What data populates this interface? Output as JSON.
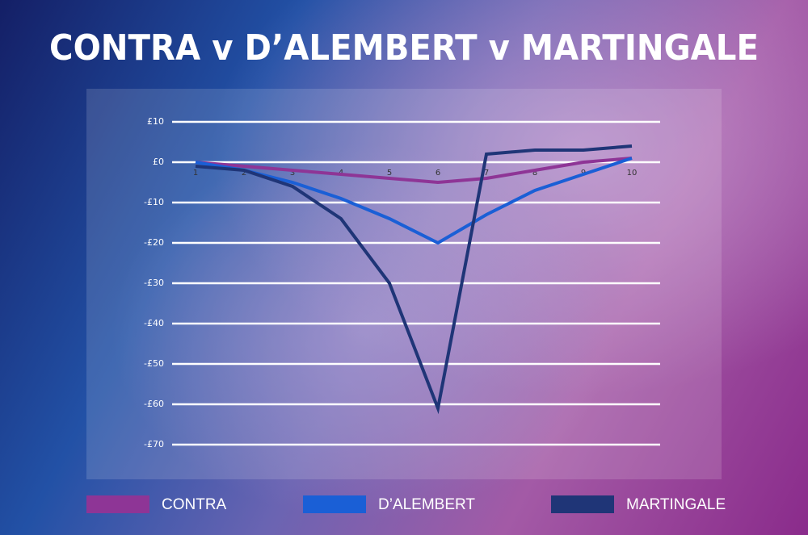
{
  "chart_data": {
    "type": "line",
    "title": "CONTRA v D’ALEMBERT v MARTINGALE",
    "categories": [
      "1",
      "2",
      "3",
      "4",
      "5",
      "6",
      "7",
      "8",
      "9",
      "10"
    ],
    "series": [
      {
        "name": "CONTRA",
        "color": "#8e3596",
        "values": [
          0,
          -1,
          -2,
          -3,
          -4,
          -5,
          -4,
          -2,
          0,
          1
        ]
      },
      {
        "name": "D’ALEMBERT",
        "color": "#1a5fd6",
        "values": [
          0,
          -2,
          -5,
          -9,
          -14,
          -20,
          -13,
          -7,
          -3,
          1
        ]
      },
      {
        "name": "MARTINGALE",
        "color": "#1f3577",
        "values": [
          -1,
          -2,
          -6,
          -14,
          -30,
          -61,
          2,
          3,
          3,
          4
        ]
      }
    ],
    "ylim": [
      -70,
      10
    ],
    "yticks": [
      {
        "value": 10,
        "label": "£10"
      },
      {
        "value": 0,
        "label": "£0"
      },
      {
        "value": -10,
        "label": "-£10"
      },
      {
        "value": -20,
        "label": "-£20"
      },
      {
        "value": -30,
        "label": "-£30"
      },
      {
        "value": -40,
        "label": "-£40"
      },
      {
        "value": -50,
        "label": "-£50"
      },
      {
        "value": -60,
        "label": "-£60"
      },
      {
        "value": -70,
        "label": "-£70"
      }
    ],
    "grid": true
  }
}
